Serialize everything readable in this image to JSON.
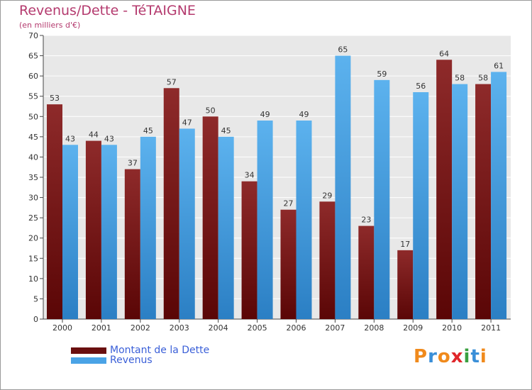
{
  "header": {
    "title": "Revenus/Dette - TéTAIGNE",
    "subtitle": "(en milliers d'€)"
  },
  "chart_data": {
    "type": "bar",
    "title": "Revenus/Dette - TéTAIGNE",
    "ylabel": "(en milliers d'€)",
    "xlabel": "",
    "categories": [
      "2000",
      "2001",
      "2002",
      "2003",
      "2004",
      "2005",
      "2006",
      "2007",
      "2008",
      "2009",
      "2010",
      "2011"
    ],
    "series": [
      {
        "name": "Montant de la Dette",
        "color": "#7a1414",
        "values": [
          53,
          44,
          37,
          57,
          50,
          34,
          27,
          29,
          23,
          17,
          64,
          58
        ]
      },
      {
        "name": "Revenus",
        "color": "#4aa3e6",
        "values": [
          43,
          43,
          45,
          47,
          45,
          49,
          49,
          65,
          59,
          56,
          58,
          61
        ]
      }
    ],
    "ylim": [
      0,
      70
    ],
    "yticks": [
      0,
      5,
      10,
      15,
      20,
      25,
      30,
      35,
      40,
      45,
      50,
      55,
      60,
      65,
      70
    ],
    "grid": true,
    "legend": "bottom-left"
  },
  "legend": {
    "items": [
      {
        "label": "Montant de la Dette",
        "color": "#7a1414"
      },
      {
        "label": "Revenus",
        "color": "#4aa3e6"
      }
    ]
  },
  "branding": {
    "letters": [
      "P",
      "r",
      "o",
      "x",
      "i",
      "t",
      "i"
    ],
    "colors": [
      "#f08a1c",
      "#3a8fd8",
      "#f08a1c",
      "#e0262a",
      "#3aa040",
      "#3a8fd8",
      "#f08a1c"
    ]
  }
}
